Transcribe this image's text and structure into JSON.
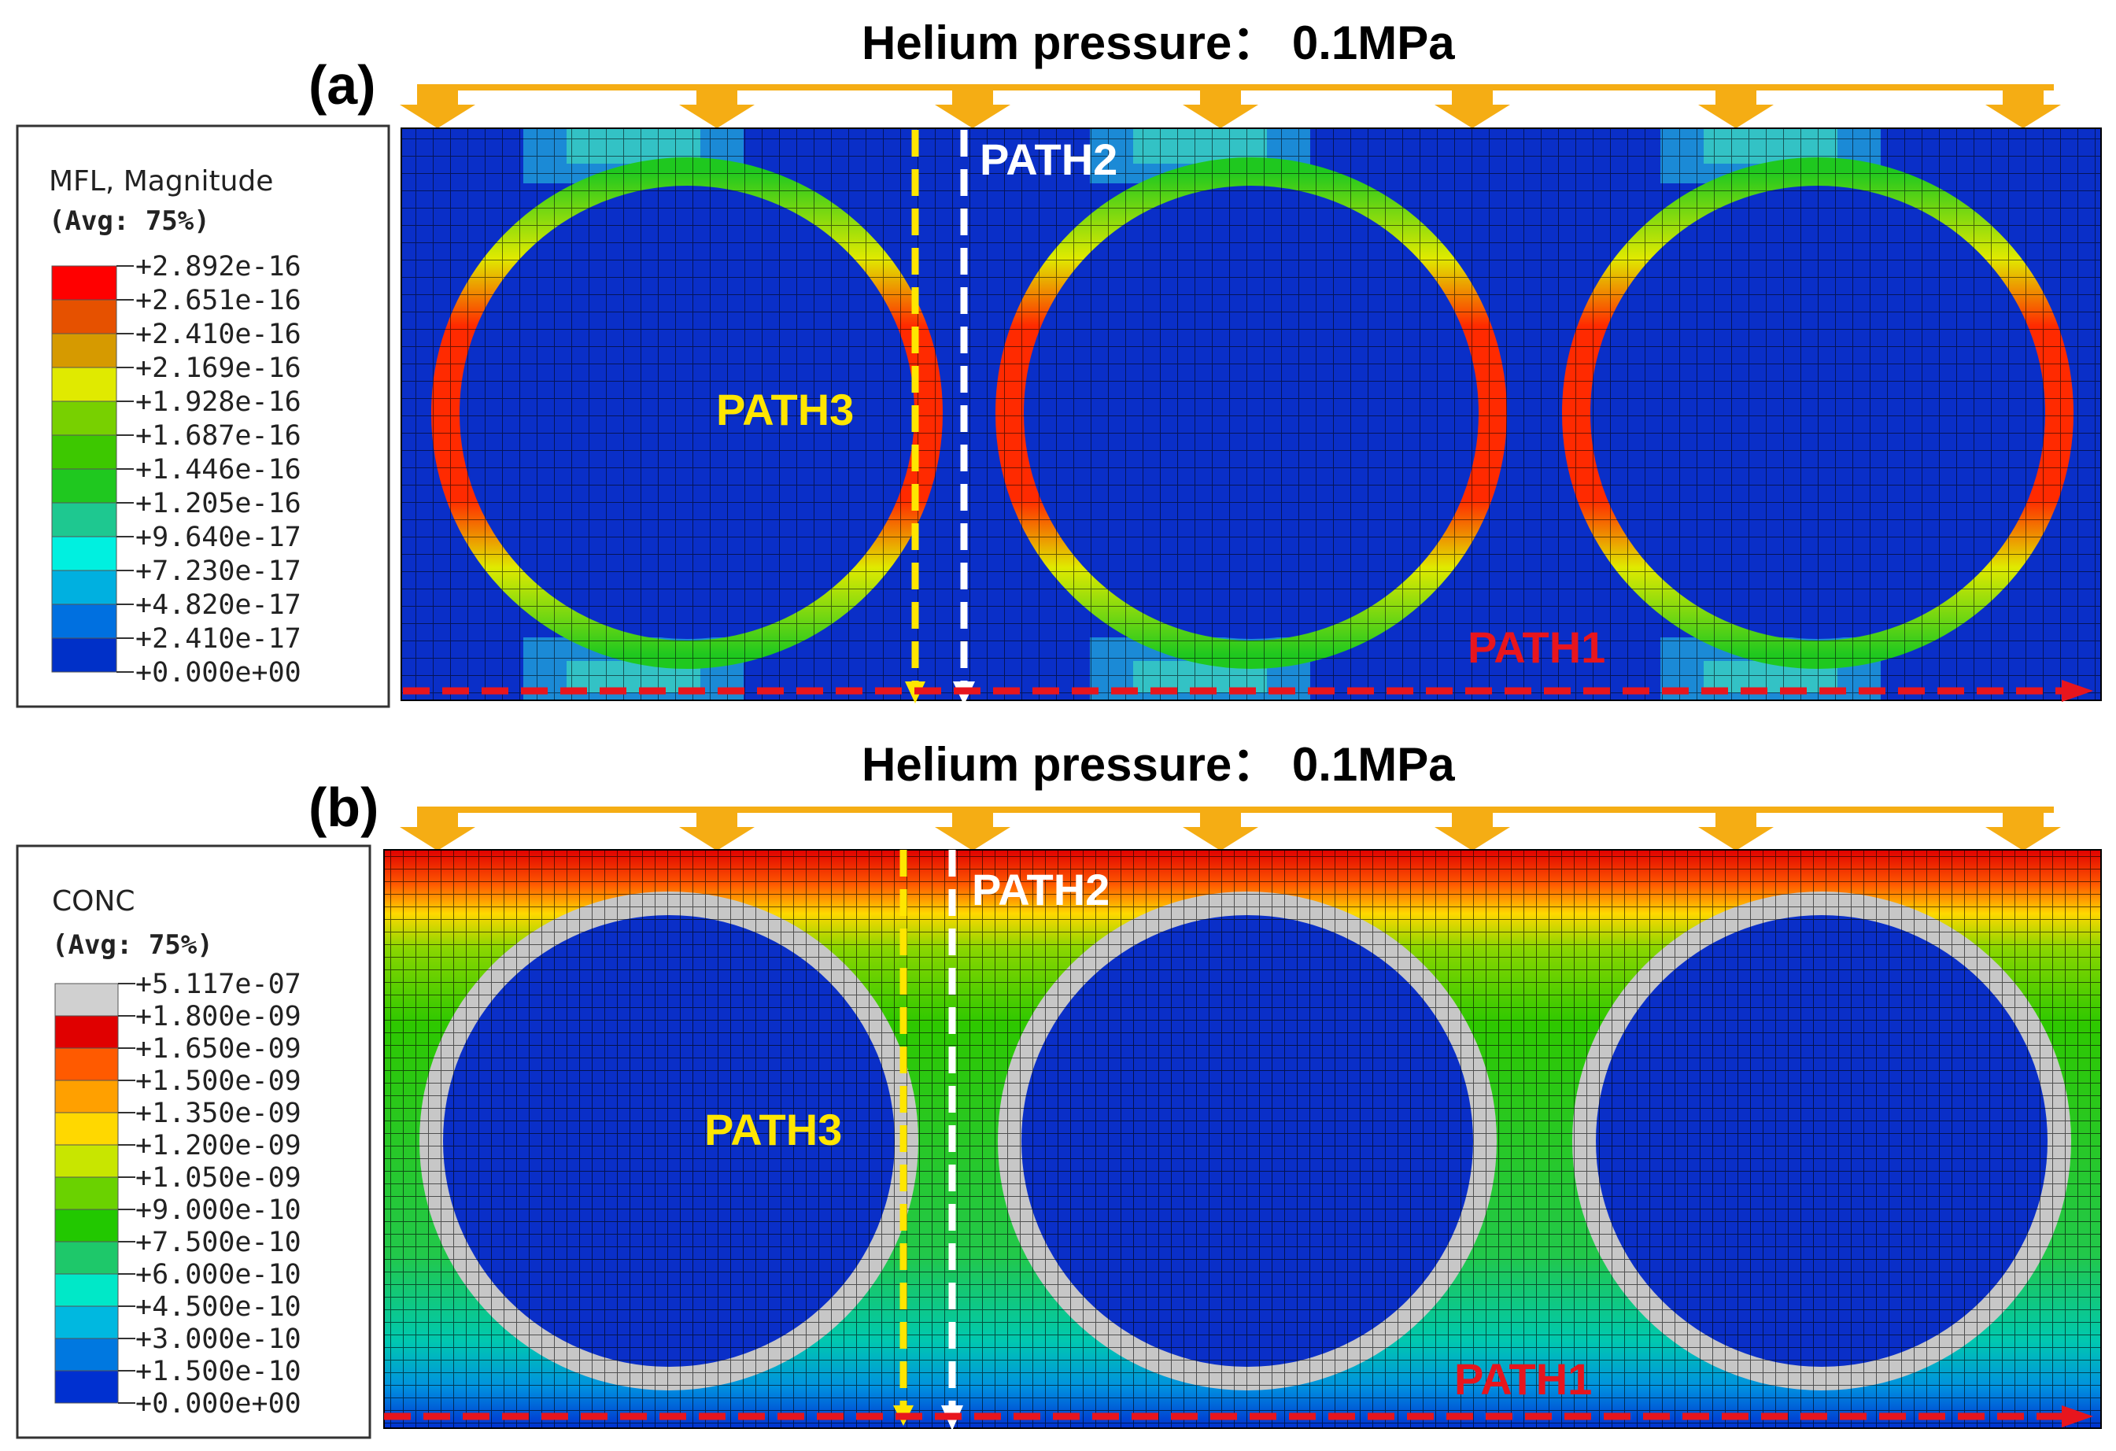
{
  "panel_a": {
    "label": "(a)",
    "title": "Helium pressure： 0.1MPa",
    "legend": {
      "title": "MFL, Magnitude",
      "avg": "(Avg: 75%)",
      "values": [
        "+2.892e-16",
        "+2.651e-16",
        "+2.410e-16",
        "+2.169e-16",
        "+1.928e-16",
        "+1.687e-16",
        "+1.446e-16",
        "+1.205e-16",
        "+9.640e-17",
        "+7.230e-17",
        "+4.820e-17",
        "+2.410e-17",
        "+0.000e+00"
      ],
      "colors": [
        "#ff0000",
        "#e65100",
        "#d69a00",
        "#e0ea00",
        "#78d000",
        "#3dc800",
        "#1fc81f",
        "#1ec890",
        "#00f0e0",
        "#00b0e0",
        "#0070e0",
        "#0030c8"
      ]
    },
    "paths": {
      "path1": "PATH1",
      "path2": "PATH2",
      "path3": "PATH3"
    }
  },
  "panel_b": {
    "label": "(b)",
    "title": "Helium pressure： 0.1MPa",
    "legend": {
      "title": "CONC",
      "avg": "(Avg: 75%)",
      "values": [
        "+5.117e-07",
        "+1.800e-09",
        "+1.650e-09",
        "+1.500e-09",
        "+1.350e-09",
        "+1.200e-09",
        "+1.050e-09",
        "+9.000e-10",
        "+7.500e-10",
        "+6.000e-10",
        "+4.500e-10",
        "+3.000e-10",
        "+1.500e-10",
        "+0.000e+00"
      ],
      "colors": [
        "#d0d0d0",
        "#e00000",
        "#ff5a00",
        "#ffa000",
        "#ffd800",
        "#c8e600",
        "#6ad200",
        "#22c800",
        "#1ec86a",
        "#00e8c8",
        "#00b8e0",
        "#0078e0",
        "#0030d0"
      ]
    },
    "paths": {
      "path1": "PATH1",
      "path2": "PATH2",
      "path3": "PATH3"
    }
  },
  "colors": {
    "arrow": "#f5ad14",
    "field_blue": "#0a2fc8",
    "path_red": "#e8151d",
    "path_yellow": "#ffe600",
    "shell_gray": "#c7c7c7"
  }
}
